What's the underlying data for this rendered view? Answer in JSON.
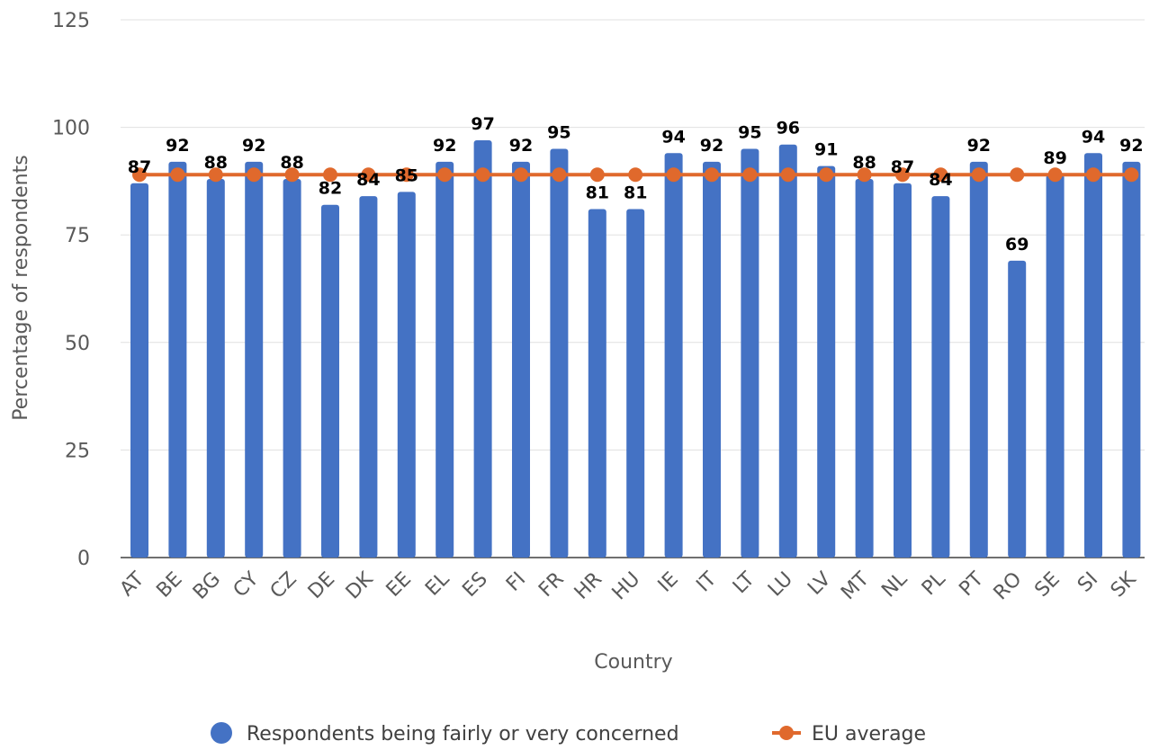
{
  "chart_data": {
    "type": "bar",
    "categories": [
      "AT",
      "BE",
      "BG",
      "CY",
      "CZ",
      "DE",
      "DK",
      "EE",
      "EL",
      "ES",
      "FI",
      "FR",
      "HR",
      "HU",
      "IE",
      "IT",
      "LT",
      "LU",
      "LV",
      "MT",
      "NL",
      "PL",
      "PT",
      "RO",
      "SE",
      "SI",
      "SK"
    ],
    "series": [
      {
        "name": "Respondents being fairly or very concerned",
        "type": "bar",
        "color": "#4472C4",
        "values": [
          87,
          92,
          88,
          92,
          88,
          82,
          84,
          85,
          92,
          97,
          92,
          95,
          81,
          81,
          94,
          92,
          95,
          96,
          91,
          88,
          87,
          84,
          92,
          69,
          89,
          94,
          92
        ]
      },
      {
        "name": "EU average",
        "type": "line",
        "color": "#E0692C",
        "values": [
          89,
          89,
          89,
          89,
          89,
          89,
          89,
          89,
          89,
          89,
          89,
          89,
          89,
          89,
          89,
          89,
          89,
          89,
          89,
          89,
          89,
          89,
          89,
          89,
          89,
          89,
          89
        ]
      }
    ],
    "xlabel": "Country",
    "ylabel": "Percentage of respondents",
    "ylim": [
      0,
      125
    ],
    "yticks": [
      0,
      25,
      50,
      75,
      100,
      125
    ],
    "grid": true,
    "legend_position": "bottom"
  }
}
